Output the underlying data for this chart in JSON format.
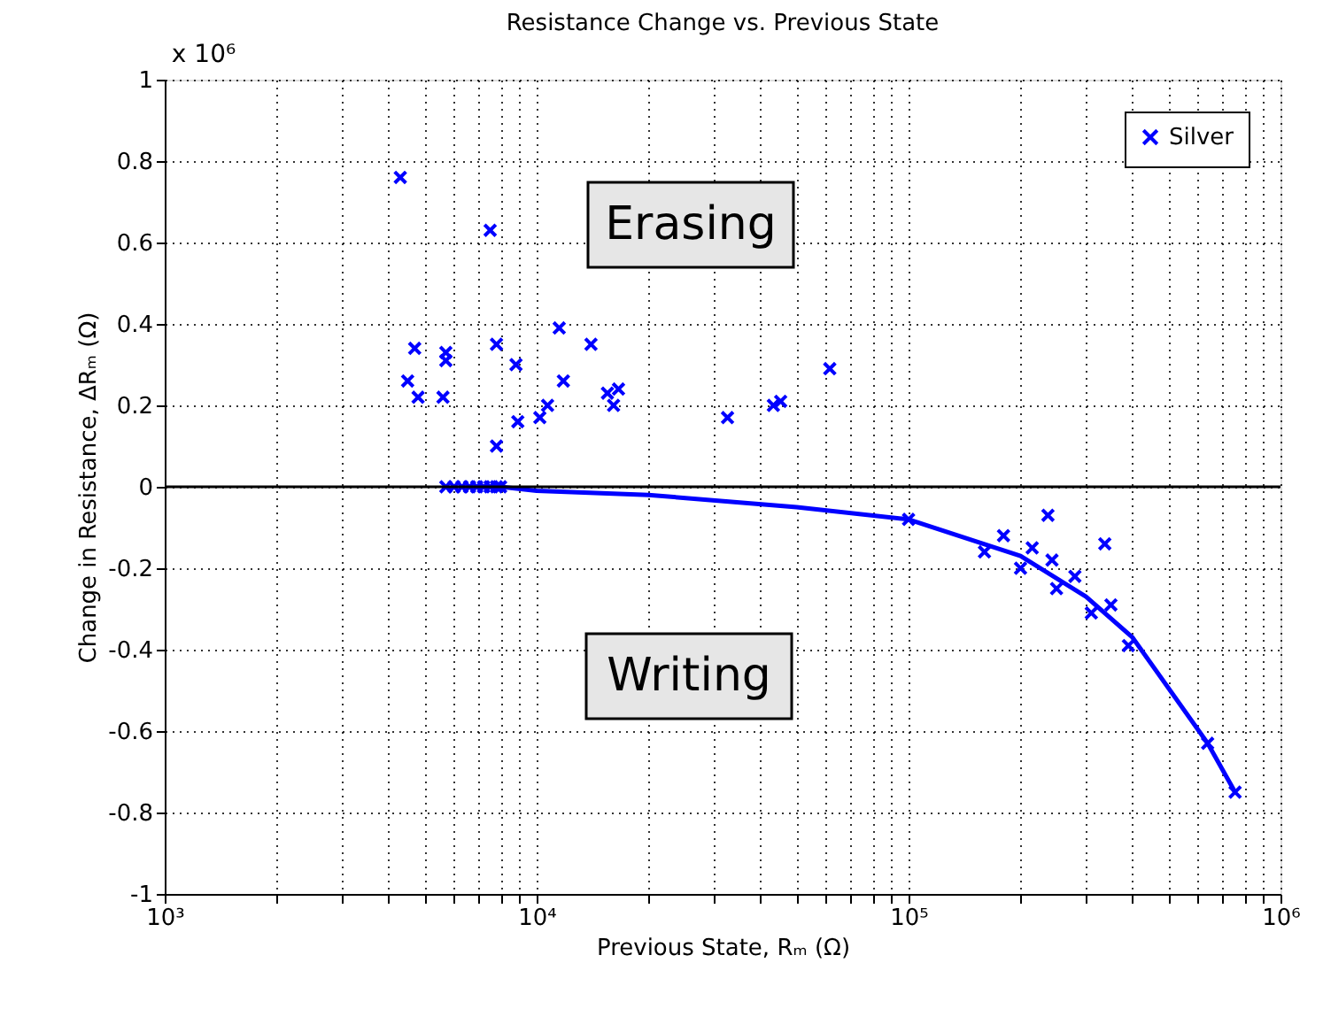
{
  "chart_data": {
    "type": "scatter",
    "title": "Resistance Change vs. Previous State",
    "xlabel": "Previous State, Rₘ (Ω)",
    "ylabel": "Change in Resistance, ΔRₘ (Ω)",
    "annotations": [
      "x 10⁶",
      "Erasing",
      "Writing"
    ],
    "log": "x",
    "grid": true,
    "legend": "top right",
    "xlim": [
      1000,
      1000000
    ],
    "xticks": [
      {
        "value": 1000,
        "label": "10³"
      },
      {
        "value": 2000,
        "label": null
      },
      {
        "value": 3000,
        "label": null
      },
      {
        "value": 4000,
        "label": null
      },
      {
        "value": 5000,
        "label": null
      },
      {
        "value": 6000,
        "label": null
      },
      {
        "value": 7000,
        "label": null
      },
      {
        "value": 8000,
        "label": null
      },
      {
        "value": 9000,
        "label": null
      },
      {
        "value": 10000,
        "label": "10⁴"
      },
      {
        "value": 20000,
        "label": null
      },
      {
        "value": 30000,
        "label": null
      },
      {
        "value": 40000,
        "label": null
      },
      {
        "value": 50000,
        "label": null
      },
      {
        "value": 60000,
        "label": null
      },
      {
        "value": 70000,
        "label": null
      },
      {
        "value": 80000,
        "label": null
      },
      {
        "value": 90000,
        "label": null
      },
      {
        "value": 100000,
        "label": "10⁵"
      },
      {
        "value": 200000,
        "label": null
      },
      {
        "value": 300000,
        "label": null
      },
      {
        "value": 400000,
        "label": null
      },
      {
        "value": 500000,
        "label": null
      },
      {
        "value": 600000,
        "label": null
      },
      {
        "value": 700000,
        "label": null
      },
      {
        "value": 800000,
        "label": null
      },
      {
        "value": 900000,
        "label": null
      },
      {
        "value": 1000000,
        "label": "10⁶"
      }
    ],
    "ylim": [
      -1,
      1
    ],
    "yticks": [
      -1,
      -0.8,
      -0.6,
      -0.4,
      -0.2,
      0,
      0.2,
      0.4,
      0.6,
      0.8,
      1
    ],
    "ref_lines": [
      {
        "axis": "y",
        "value": 0,
        "color": "#000000",
        "line_style": "solid"
      }
    ],
    "series": [
      {
        "name": "Silver",
        "color": "#0000ff",
        "marker": "cross",
        "x": [
          4300,
          7500,
          4700,
          5700,
          5700,
          4500,
          4800,
          5600,
          7800,
          8800,
          11500,
          14000,
          11800,
          8900,
          7800,
          10200,
          10700,
          15500,
          16600,
          16100,
          32600,
          43300,
          45300,
          61400,
          5700,
          6000,
          6300,
          6600,
          6900,
          7200,
          7500,
          7800,
          8000,
          100000,
          237000,
          337000,
          243000,
          160000,
          180000,
          200000,
          215000,
          250000,
          280000,
          310000,
          350000,
          390000,
          637000,
          755000
        ],
        "values": [
          0.76,
          0.63,
          0.34,
          0.33,
          0.31,
          0.26,
          0.22,
          0.22,
          0.35,
          0.3,
          0.39,
          0.35,
          0.26,
          0.16,
          0.1,
          0.17,
          0.2,
          0.23,
          0.24,
          0.2,
          0.17,
          0.2,
          0.21,
          0.29,
          0,
          0,
          0,
          0,
          0,
          0,
          0,
          0,
          0,
          -0.08,
          -0.07,
          -0.14,
          -0.18,
          -0.16,
          -0.12,
          -0.2,
          -0.15,
          -0.25,
          -0.22,
          -0.31,
          -0.29,
          -0.39,
          -0.63,
          -0.75
        ]
      },
      {
        "type": "line",
        "color": "#0000ff",
        "line_style": "solid",
        "marker": "none",
        "x": [
          8000,
          10000,
          20000,
          50000,
          100000,
          200000,
          300000,
          400000,
          637000,
          755000
        ],
        "values": [
          0,
          -0.01,
          -0.02,
          -0.05,
          -0.08,
          -0.17,
          -0.27,
          -0.37,
          -0.63,
          -0.75
        ]
      }
    ]
  }
}
